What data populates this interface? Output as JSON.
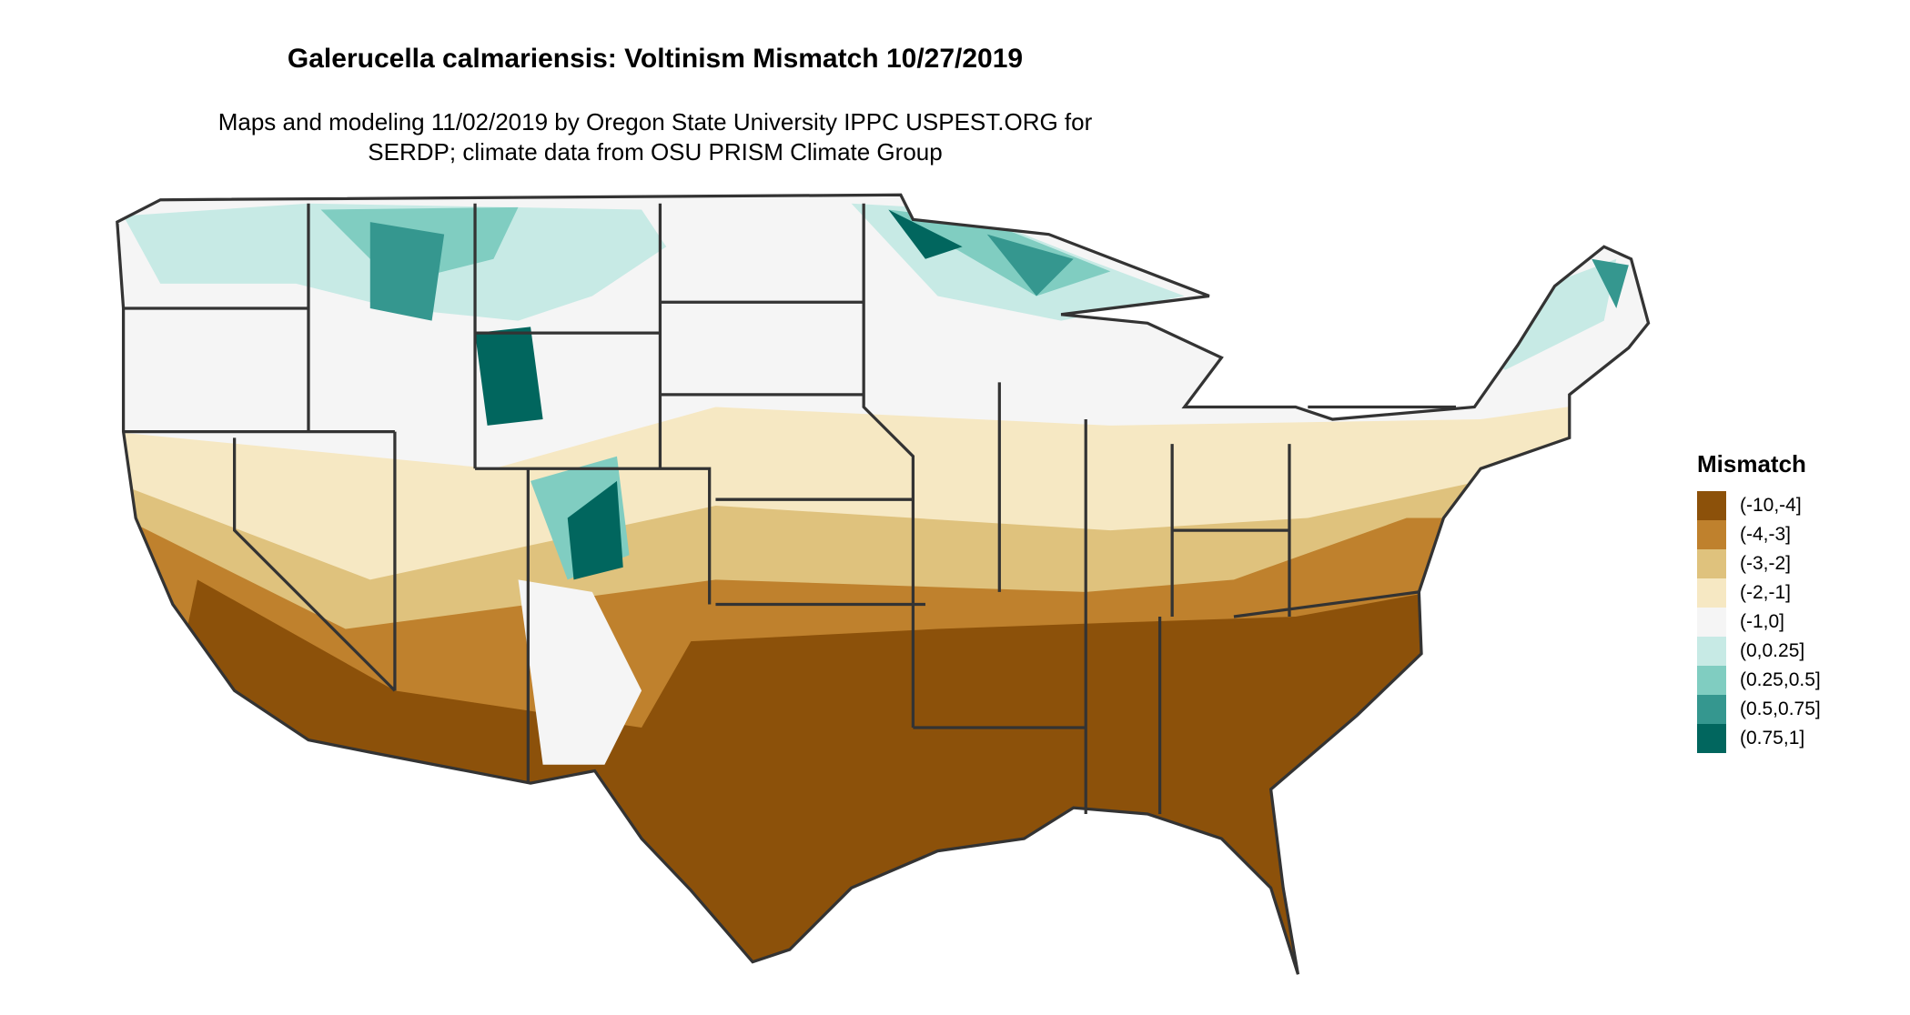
{
  "title": "Galerucella calmariensis: Voltinism Mismatch 10/27/2019",
  "subtitle_line1": "Maps and modeling 11/02/2019 by Oregon State University IPPC USPEST.ORG for",
  "subtitle_line2": "SERDP; climate data from OSU PRISM Climate Group",
  "legend": {
    "title": "Mismatch",
    "items": [
      {
        "label": "(-10,-4]",
        "color": "#8C510A"
      },
      {
        "label": "(-4,-3]",
        "color": "#BF812D"
      },
      {
        "label": "(-3,-2]",
        "color": "#DFC27D"
      },
      {
        "label": "(-2,-1]",
        "color": "#F6E8C3"
      },
      {
        "label": "(-1,0]",
        "color": "#F5F5F5"
      },
      {
        "label": "(0,0.25]",
        "color": "#C7EAE5"
      },
      {
        "label": "(0.25,0.5]",
        "color": "#80CDC1"
      },
      {
        "label": "(0.5,0.75]",
        "color": "#35978F"
      },
      {
        "label": "(0.75,1]",
        "color": "#01665E"
      }
    ]
  },
  "chart_data": {
    "type": "heatmap",
    "region": "contiguous United States",
    "legend_placement": "right",
    "pattern": {
      "southern_states": "(-10,-4]",
      "mid_latitude_band": "(-4,-3] to (-2,-1]",
      "northern_states": "(-1,0]",
      "high_elevation_and_far_north": "(0,0.25] to (0.75,1]"
    }
  }
}
